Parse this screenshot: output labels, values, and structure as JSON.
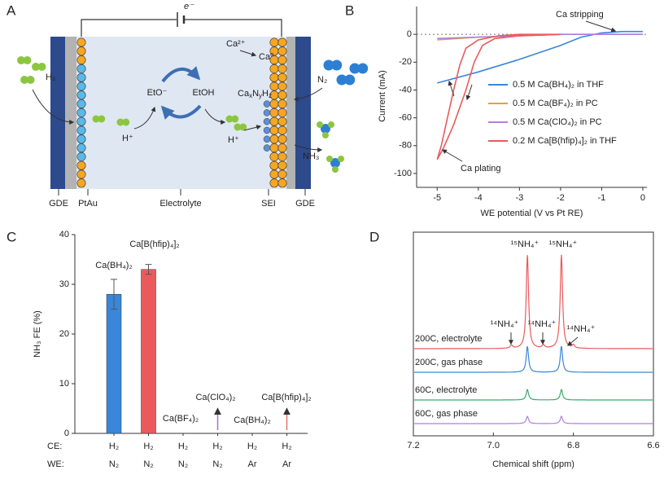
{
  "panel_labels": [
    "A",
    "B",
    "C",
    "D"
  ],
  "diagram": {
    "electron": "e⁻",
    "ca_ion": "Ca²⁺",
    "ca_metal": "Ca⁰",
    "h2": "H₂",
    "eto": "EtO⁻",
    "etoh": "EtOH",
    "h_plus_left": "H⁺",
    "h_plus_right": "H⁺",
    "nitride_parts": [
      "Ca",
      "x",
      "N",
      "y",
      "H",
      "z"
    ],
    "n2": "N₂",
    "nh3": "NH₃",
    "bottom_labels": [
      "GDE",
      "PtAu",
      "Electrolyte",
      "SEI",
      "GDE"
    ]
  },
  "chart_data": [
    {
      "type": "line",
      "xlabel": "WE potential (V vs Pt RE)",
      "ylabel": "Current (mA)",
      "xlim": [
        -5.5,
        0.1
      ],
      "xticks": [
        -5,
        -4,
        -3,
        -2,
        -1,
        0
      ],
      "ylim": [
        -110,
        20
      ],
      "yticks": [
        -100,
        -80,
        -60,
        -40,
        -20,
        0
      ],
      "zero_line": true,
      "legend": "lower right",
      "annotations": [
        "Ca stripping",
        "Ca plating"
      ],
      "series": [
        {
          "name": "0.5 M Ca(BH₄)₂ in THF",
          "color": "#3a86d8",
          "x": [
            -5,
            -4,
            -3,
            -2,
            -1.5,
            -1,
            -0.5,
            0
          ],
          "values": [
            -35,
            -27,
            -18,
            -8,
            -2,
            1,
            2,
            2
          ]
        },
        {
          "name": "0.5 M Ca(BF₄)₂ in PC",
          "color": "#e0a630",
          "x": [
            -5,
            -4.5,
            -4,
            -3,
            -2,
            -1,
            0
          ],
          "values": [
            -4,
            -3,
            -2,
            -1,
            0,
            0,
            0
          ]
        },
        {
          "name": "0.5 M Ca(ClO₄)₂ in PC",
          "color": "#b07ee0",
          "x": [
            -5,
            -4,
            -3,
            -2,
            -1,
            0
          ],
          "values": [
            -3,
            -2,
            -1,
            0,
            0,
            0
          ]
        },
        {
          "name": "0.2 M Ca[B(hfip)₄]₂ in THF",
          "color": "#ea5a5c",
          "x": [
            -2,
            -3,
            -3.6,
            -3.9,
            -4.1,
            -4.3,
            -4.6,
            -4.85,
            -5,
            -4.9,
            -4.75,
            -4.6,
            -4.45,
            -4.3,
            -4,
            -3.5,
            -3,
            -2.5,
            -2
          ],
          "values": [
            0,
            -1,
            -3,
            -8,
            -20,
            -40,
            -65,
            -82,
            -90,
            -80,
            -60,
            -40,
            -22,
            -10,
            -4,
            -1,
            0,
            0,
            0
          ]
        }
      ]
    },
    {
      "type": "bar",
      "ylabel": "NH₃ FE (%)",
      "ylim": [
        0,
        40
      ],
      "yticks": [
        0,
        10,
        20,
        30,
        40
      ],
      "row_labels": [
        "CE:",
        "WE:"
      ],
      "categories": [
        [
          "H₂",
          "N₂"
        ],
        [
          "H₂",
          "N₂"
        ],
        [
          "H₂",
          "N₂"
        ],
        [
          "H₂",
          "N₂"
        ],
        [
          "H₂",
          "Ar"
        ],
        [
          "H₂",
          "Ar"
        ]
      ],
      "values": [
        28,
        33,
        0,
        0,
        0,
        0
      ],
      "errors": [
        3,
        1,
        null,
        null,
        null,
        null
      ],
      "colors": [
        "#3a86d8",
        "#ea5a5c",
        "#e0a630",
        "#a66fdc",
        "#3b5ea8",
        "#e8726d"
      ],
      "bar_labels": [
        "Ca(BH₄)₂",
        "Ca[B(hfip)₄]₂",
        "Ca(BF₄)₂",
        "Ca(ClO₄)₂",
        "Ca(BH₄)₂",
        "Ca[B(hfip)₄]₂"
      ]
    },
    {
      "type": "spectrum",
      "xlabel": "Chemical shift (ppm)",
      "xlim": [
        7.2,
        6.6
      ],
      "xticks": [
        7.2,
        {
          "value": 7,
          "label": "7.0"
        },
        6.8,
        6.6
      ],
      "series": [
        {
          "name": "200C, electrolyte",
          "color": "#ea5a5c",
          "peak_positions": [
            6.955,
            6.915,
            6.875,
            6.83,
            6.8
          ],
          "peak_heights": [
            3,
            90,
            3,
            90,
            3
          ]
        },
        {
          "name": "200C, gas phase",
          "color": "#3a86d8",
          "peak_positions": [
            6.915,
            6.83
          ],
          "peak_heights": [
            25,
            25
          ]
        },
        {
          "name": "60C, electrolyte",
          "color": "#3aaa6a",
          "peak_positions": [
            6.915,
            6.83
          ],
          "peak_heights": [
            10,
            10
          ]
        },
        {
          "name": "60C, gas phase",
          "color": "#b07ee0",
          "peak_positions": [
            6.915,
            6.83
          ],
          "peak_heights": [
            7,
            7
          ]
        }
      ],
      "annotations": [
        "¹⁵NH₄⁺",
        "¹⁵NH₄⁺",
        "¹⁴NH₄⁺",
        "¹⁴NH₄⁺",
        "¹⁴NH₄⁺"
      ]
    }
  ]
}
